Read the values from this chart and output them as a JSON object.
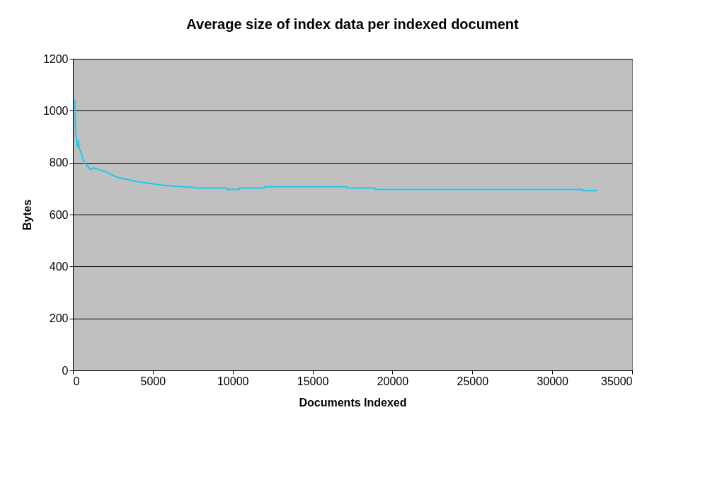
{
  "chart_data": {
    "type": "line",
    "title": "Average size of index data per indexed document",
    "xlabel": "Documents Indexed",
    "ylabel": "Bytes",
    "xlim": [
      0,
      35000
    ],
    "xticks": [
      0,
      5000,
      10000,
      15000,
      20000,
      25000,
      30000,
      35000
    ],
    "ylim": [
      0,
      1200
    ],
    "yticks": [
      0,
      200,
      400,
      600,
      800,
      1000,
      1200
    ],
    "grid": "y",
    "marker": "none",
    "line_style": "solid",
    "series": [
      {
        "color": "#1ec8f0",
        "x": [
          60,
          130,
          170,
          240,
          280,
          340,
          390,
          540,
          610,
          730,
          980,
          1090,
          1280,
          1650,
          2100,
          2540,
          2920,
          3440,
          4030,
          4780,
          5520,
          6410,
          7590,
          7600,
          9640,
          9650,
          10440,
          10450,
          11960,
          11970,
          17140,
          17150,
          18930,
          18940,
          31900,
          31910,
          32800
        ],
        "values": [
          1040,
          1038,
          915,
          888,
          861,
          885,
          857,
          834,
          816,
          800,
          782,
          773,
          780,
          773,
          764,
          750,
          741,
          735,
          727,
          720,
          714,
          709,
          705,
          702,
          702,
          697,
          697,
          702,
          702,
          707,
          707,
          702,
          702,
          697,
          697,
          692,
          692
        ]
      }
    ]
  }
}
